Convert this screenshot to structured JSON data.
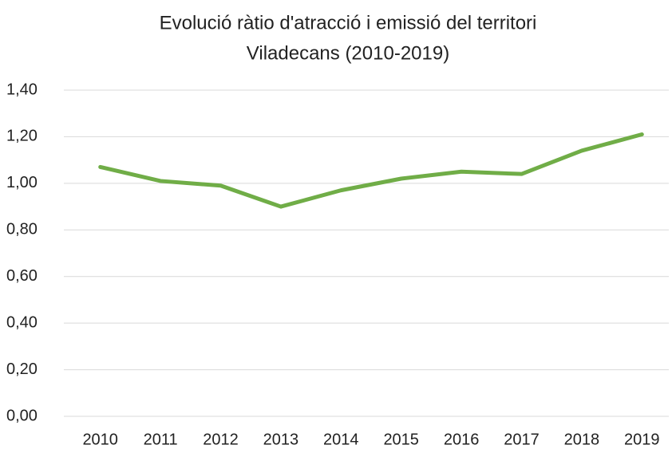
{
  "chart_data": {
    "type": "line",
    "title": [
      "Evolució ràtio d'atracció i emissió del territori",
      "Viladecans (2010-2019)"
    ],
    "categories": [
      "2010",
      "2011",
      "2012",
      "2013",
      "2014",
      "2015",
      "2016",
      "2017",
      "2018",
      "2019"
    ],
    "values": [
      1.07,
      1.01,
      0.99,
      0.9,
      0.97,
      1.02,
      1.05,
      1.04,
      1.14,
      1.21
    ],
    "color": "#70ad47",
    "ylim": [
      0,
      1.4
    ],
    "yticks": [
      {
        "value": 0,
        "label": "0,00"
      },
      {
        "value": 0.2,
        "label": "0,20"
      },
      {
        "value": 0.4,
        "label": "0,40"
      },
      {
        "value": 0.6,
        "label": "0,60"
      },
      {
        "value": 0.8,
        "label": "0,80"
      },
      {
        "value": 1.0,
        "label": "1,00"
      },
      {
        "value": 1.2,
        "label": "1,20"
      },
      {
        "value": 1.4,
        "label": "1,40"
      }
    ],
    "grid": true
  }
}
